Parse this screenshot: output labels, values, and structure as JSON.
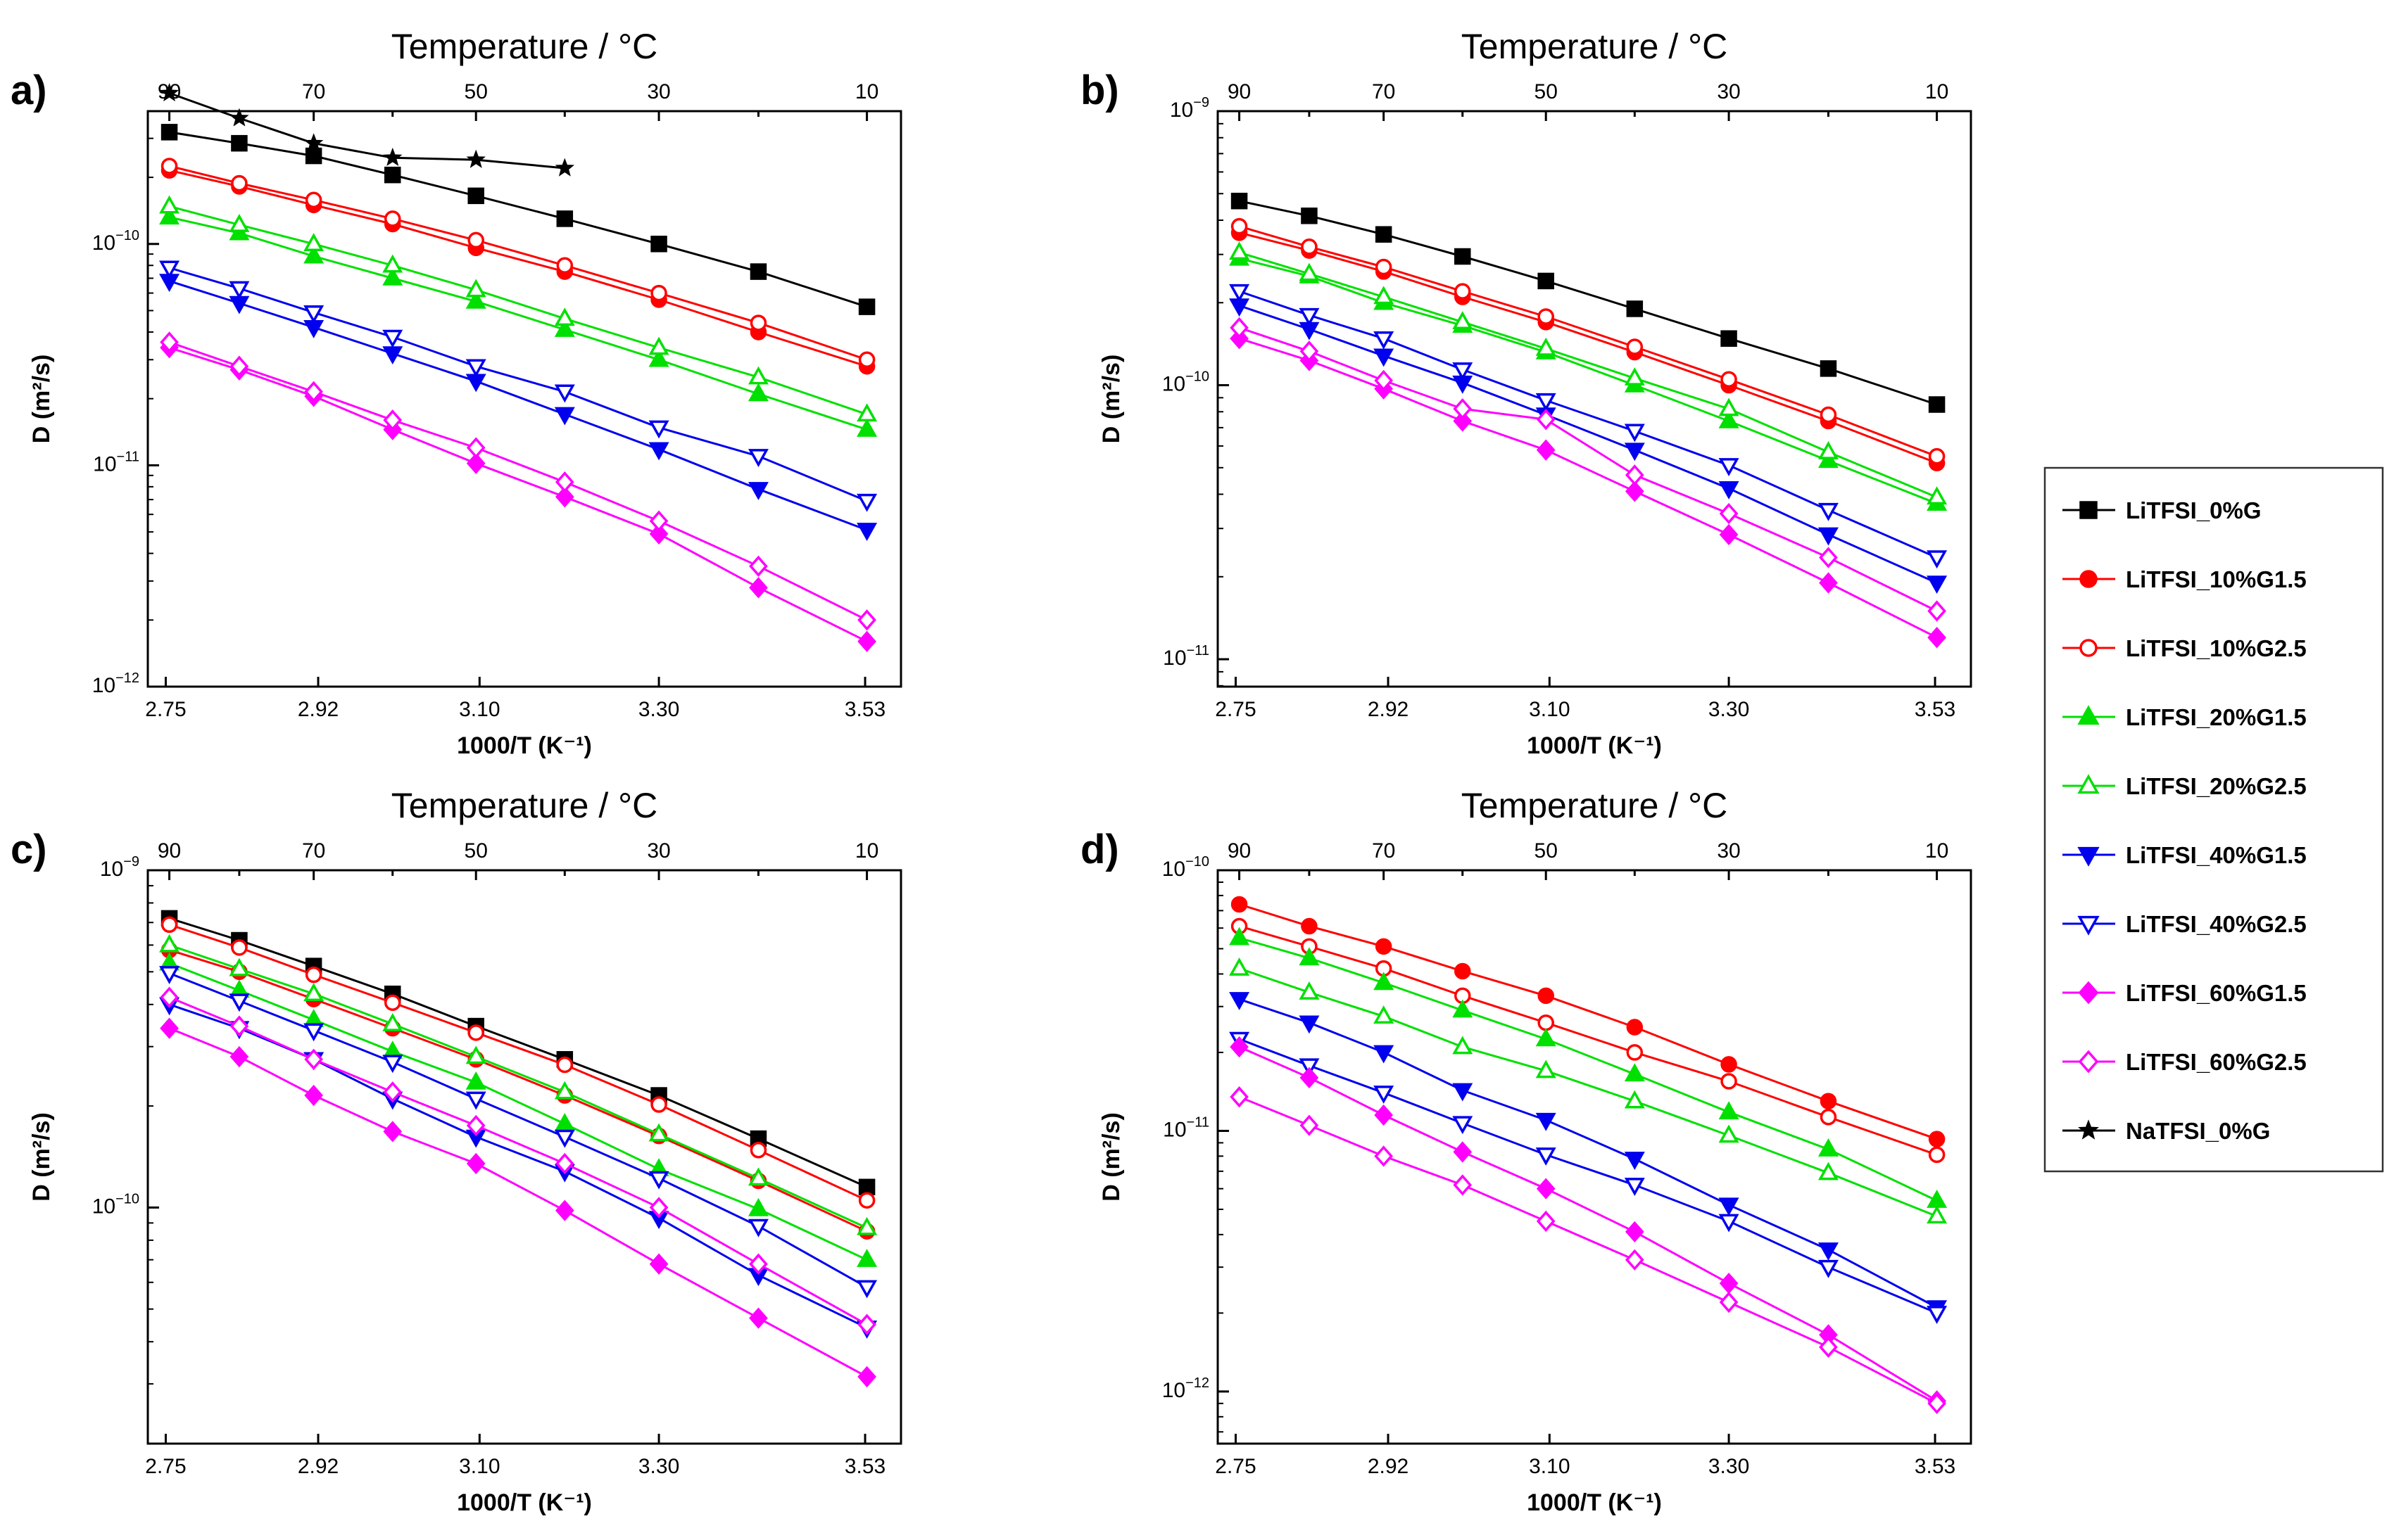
{
  "figure": {
    "legend_entries": [
      {
        "name": "LiTFSI_0%G",
        "color": "#000000",
        "marker": "square",
        "filled": true
      },
      {
        "name": "LiTFSI_10%G1.5",
        "color": "#ff0000",
        "marker": "circle",
        "filled": true
      },
      {
        "name": "LiTFSI_10%G2.5",
        "color": "#ff0000",
        "marker": "circle",
        "filled": false
      },
      {
        "name": "LiTFSI_20%G1.5",
        "color": "#00e000",
        "marker": "triangle-up",
        "filled": true
      },
      {
        "name": "LiTFSI_20%G2.5",
        "color": "#00e000",
        "marker": "triangle-up",
        "filled": false
      },
      {
        "name": "LiTFSI_40%G1.5",
        "color": "#0000ee",
        "marker": "triangle-down",
        "filled": true
      },
      {
        "name": "LiTFSI_40%G2.5",
        "color": "#0000ee",
        "marker": "triangle-down",
        "filled": false
      },
      {
        "name": "LiTFSI_60%G1.5",
        "color": "#ff00ff",
        "marker": "diamond",
        "filled": true
      },
      {
        "name": "LiTFSI_60%G2.5",
        "color": "#ff00ff",
        "marker": "diamond",
        "filled": false
      },
      {
        "name": "NaTFSI_0%G",
        "color": "#000000",
        "marker": "star",
        "filled": true
      }
    ]
  },
  "chart_data": [
    {
      "type": "line",
      "panel_label": "a)",
      "title": "Temperature / °C",
      "xlabel": "1000/T (K⁻¹)",
      "ylabel": "D (m²/s)",
      "yscale": "log",
      "xlim": [
        2.73,
        3.57
      ],
      "ylim_exp": [
        -12,
        -9.4
      ],
      "xticks": [
        2.75,
        2.92,
        3.1,
        3.3,
        3.53
      ],
      "xtick_labels": [
        "2.75",
        "2.92",
        "3.10",
        "3.30",
        "3.53"
      ],
      "yticks_exp": [
        -12,
        -11,
        -10
      ],
      "top_ticks_x": [
        2.754,
        2.832,
        2.915,
        3.003,
        3.096,
        3.195,
        3.3,
        3.411,
        3.532
      ],
      "top_tick_labels": [
        "90",
        "",
        "70",
        "",
        "50",
        "",
        "30",
        "",
        "10"
      ],
      "x": [
        2.754,
        2.832,
        2.915,
        3.003,
        3.096,
        3.195,
        3.3,
        3.411,
        3.532
      ],
      "series": [
        {
          "name": "LiTFSI_0%G",
          "values": [
            3.2e-10,
            2.85e-10,
            2.5e-10,
            2.05e-10,
            1.65e-10,
            1.3e-10,
            1e-10,
            7.5e-11,
            5.2e-11
          ]
        },
        {
          "name": "LiTFSI_10%G1.5",
          "values": [
            2.15e-10,
            1.82e-10,
            1.5e-10,
            1.23e-10,
            9.6e-11,
            7.5e-11,
            5.6e-11,
            4e-11,
            2.8e-11
          ]
        },
        {
          "name": "LiTFSI_10%G2.5",
          "values": [
            2.25e-10,
            1.88e-10,
            1.58e-10,
            1.3e-10,
            1.04e-10,
            8e-11,
            6e-11,
            4.4e-11,
            3e-11
          ]
        },
        {
          "name": "LiTFSI_20%G1.5",
          "values": [
            1.32e-10,
            1.12e-10,
            8.8e-11,
            7e-11,
            5.5e-11,
            4.1e-11,
            3e-11,
            2.1e-11,
            1.45e-11
          ]
        },
        {
          "name": "LiTFSI_20%G2.5",
          "values": [
            1.48e-10,
            1.22e-10,
            1e-10,
            8e-11,
            6.2e-11,
            4.6e-11,
            3.4e-11,
            2.5e-11,
            1.7e-11
          ]
        },
        {
          "name": "LiTFSI_40%G1.5",
          "values": [
            6.8e-11,
            5.4e-11,
            4.2e-11,
            3.2e-11,
            2.4e-11,
            1.7e-11,
            1.18e-11,
            7.8e-12,
            5.1e-12
          ]
        },
        {
          "name": "LiTFSI_40%G2.5",
          "values": [
            7.8e-11,
            6.3e-11,
            4.9e-11,
            3.8e-11,
            2.8e-11,
            2.15e-11,
            1.48e-11,
            1.1e-11,
            6.9e-12
          ]
        },
        {
          "name": "LiTFSI_60%G1.5",
          "values": [
            3.4e-11,
            2.7e-11,
            2.05e-11,
            1.45e-11,
            1.02e-11,
            7.2e-12,
            4.9e-12,
            2.8e-12,
            1.6e-12
          ]
        },
        {
          "name": "LiTFSI_60%G2.5",
          "values": [
            3.6e-11,
            2.8e-11,
            2.15e-11,
            1.6e-11,
            1.2e-11,
            8.4e-12,
            5.6e-12,
            3.5e-12,
            2e-12
          ]
        },
        {
          "name": "NaTFSI_0%G",
          "x": [
            2.754,
            2.832,
            2.915,
            3.003,
            3.096,
            3.195
          ],
          "values": [
            4.8e-10,
            3.7e-10,
            2.85e-10,
            2.45e-10,
            2.4e-10,
            2.2e-10
          ]
        }
      ]
    },
    {
      "type": "line",
      "panel_label": "b)",
      "title": "Temperature / °C",
      "xlabel": "1000/T (K⁻¹)",
      "ylabel": "D (m²/s)",
      "yscale": "log",
      "xlim": [
        2.73,
        3.57
      ],
      "ylim_exp": [
        -11.1,
        -9
      ],
      "xticks": [
        2.75,
        2.92,
        3.1,
        3.3,
        3.53
      ],
      "xtick_labels": [
        "2.75",
        "2.92",
        "3.10",
        "3.30",
        "3.53"
      ],
      "yticks_exp": [
        -11,
        -10,
        -9
      ],
      "top_ticks_x": [
        2.754,
        2.832,
        2.915,
        3.003,
        3.096,
        3.195,
        3.3,
        3.411,
        3.532
      ],
      "top_tick_labels": [
        "90",
        "",
        "70",
        "",
        "50",
        "",
        "30",
        "",
        "10"
      ],
      "x": [
        2.754,
        2.832,
        2.915,
        3.003,
        3.096,
        3.195,
        3.3,
        3.411,
        3.532
      ],
      "series": [
        {
          "name": "LiTFSI_0%G",
          "values": [
            4.7e-10,
            4.15e-10,
            3.55e-10,
            2.95e-10,
            2.4e-10,
            1.9e-10,
            1.48e-10,
            1.15e-10,
            8.5e-11
          ]
        },
        {
          "name": "LiTFSI_10%G1.5",
          "values": [
            3.6e-10,
            3.1e-10,
            2.6e-10,
            2.1e-10,
            1.7e-10,
            1.32e-10,
            1e-10,
            7.4e-11,
            5.2e-11
          ]
        },
        {
          "name": "LiTFSI_10%G2.5",
          "values": [
            3.8e-10,
            3.2e-10,
            2.7e-10,
            2.2e-10,
            1.78e-10,
            1.38e-10,
            1.05e-10,
            7.8e-11,
            5.5e-11
          ]
        },
        {
          "name": "LiTFSI_20%G1.5",
          "values": [
            2.9e-10,
            2.5e-10,
            2e-10,
            1.65e-10,
            1.32e-10,
            1e-10,
            7.4e-11,
            5.3e-11,
            3.7e-11
          ]
        },
        {
          "name": "LiTFSI_20%G2.5",
          "values": [
            3.05e-10,
            2.55e-10,
            2.1e-10,
            1.7e-10,
            1.36e-10,
            1.06e-10,
            8.2e-11,
            5.7e-11,
            3.9e-11
          ]
        },
        {
          "name": "LiTFSI_40%G1.5",
          "values": [
            1.95e-10,
            1.6e-10,
            1.28e-10,
            1.02e-10,
            7.8e-11,
            5.8e-11,
            4.2e-11,
            2.85e-11,
            1.9e-11
          ]
        },
        {
          "name": "LiTFSI_40%G2.5",
          "values": [
            2.2e-10,
            1.8e-10,
            1.48e-10,
            1.14e-10,
            8.8e-11,
            6.8e-11,
            5.1e-11,
            3.5e-11,
            2.35e-11
          ]
        },
        {
          "name": "LiTFSI_60%G1.5",
          "values": [
            1.48e-10,
            1.23e-10,
            9.7e-11,
            7.4e-11,
            5.8e-11,
            4.1e-11,
            2.85e-11,
            1.9e-11,
            1.2e-11
          ]
        },
        {
          "name": "LiTFSI_60%G2.5",
          "values": [
            1.62e-10,
            1.33e-10,
            1.04e-10,
            8.2e-11,
            7.5e-11,
            4.7e-11,
            3.4e-11,
            2.35e-11,
            1.5e-11
          ]
        }
      ]
    },
    {
      "type": "line",
      "panel_label": "c)",
      "title": "Temperature / °C",
      "xlabel": "1000/T (K⁻¹)",
      "ylabel": "D (m²/s)",
      "yscale": "log",
      "xlim": [
        2.73,
        3.57
      ],
      "ylim_exp": [
        -10.7,
        -9
      ],
      "xticks": [
        2.75,
        2.92,
        3.1,
        3.3,
        3.53
      ],
      "xtick_labels": [
        "2.75",
        "2.92",
        "3.10",
        "3.30",
        "3.53"
      ],
      "yticks_exp": [
        -10,
        -9
      ],
      "top_ticks_x": [
        2.754,
        2.832,
        2.915,
        3.003,
        3.096,
        3.195,
        3.3,
        3.411,
        3.532
      ],
      "top_tick_labels": [
        "90",
        "",
        "70",
        "",
        "50",
        "",
        "30",
        "",
        "10"
      ],
      "x": [
        2.754,
        2.832,
        2.915,
        3.003,
        3.096,
        3.195,
        3.3,
        3.411,
        3.532
      ],
      "series": [
        {
          "name": "LiTFSI_0%G",
          "values": [
            7.2e-10,
            6.2e-10,
            5.2e-10,
            4.3e-10,
            3.45e-10,
            2.75e-10,
            2.15e-10,
            1.6e-10,
            1.15e-10
          ]
        },
        {
          "name": "LiTFSI_10%G1.5",
          "values": [
            5.8e-10,
            5e-10,
            4.15e-10,
            3.4e-10,
            2.75e-10,
            2.15e-10,
            1.63e-10,
            1.2e-10,
            8.5e-11
          ]
        },
        {
          "name": "LiTFSI_10%G2.5",
          "values": [
            6.9e-10,
            5.9e-10,
            4.9e-10,
            4.05e-10,
            3.3e-10,
            2.65e-10,
            2.02e-10,
            1.48e-10,
            1.05e-10
          ]
        },
        {
          "name": "LiTFSI_20%G1.5",
          "values": [
            5.3e-10,
            4.4e-10,
            3.6e-10,
            2.9e-10,
            2.35e-10,
            1.77e-10,
            1.3e-10,
            9.9e-11,
            7e-11
          ]
        },
        {
          "name": "LiTFSI_20%G2.5",
          "values": [
            6e-10,
            5.1e-10,
            4.3e-10,
            3.5e-10,
            2.8e-10,
            2.2e-10,
            1.65e-10,
            1.22e-10,
            8.7e-11
          ]
        },
        {
          "name": "LiTFSI_40%G1.5",
          "values": [
            4e-10,
            3.4e-10,
            2.75e-10,
            2.1e-10,
            1.62e-10,
            1.28e-10,
            9.3e-11,
            6.3e-11,
            4.4e-11
          ]
        },
        {
          "name": "LiTFSI_40%G2.5",
          "values": [
            4.95e-10,
            4.1e-10,
            3.35e-10,
            2.7e-10,
            2.1e-10,
            1.62e-10,
            1.22e-10,
            8.8e-11,
            5.8e-11
          ]
        },
        {
          "name": "LiTFSI_60%G1.5",
          "values": [
            3.4e-10,
            2.8e-10,
            2.15e-10,
            1.68e-10,
            1.35e-10,
            9.8e-11,
            6.8e-11,
            4.7e-11,
            3.15e-11
          ]
        },
        {
          "name": "LiTFSI_60%G2.5",
          "values": [
            4.2e-10,
            3.45e-10,
            2.75e-10,
            2.2e-10,
            1.75e-10,
            1.35e-10,
            1e-10,
            6.8e-11,
            4.5e-11
          ]
        }
      ]
    },
    {
      "type": "line",
      "panel_label": "d)",
      "title": "Temperature / °C",
      "xlabel": "1000/T (K⁻¹)",
      "ylabel": "D (m²/s)",
      "yscale": "log",
      "xlim": [
        2.73,
        3.57
      ],
      "ylim_exp": [
        -12.2,
        -10
      ],
      "xticks": [
        2.75,
        2.92,
        3.1,
        3.3,
        3.53
      ],
      "xtick_labels": [
        "2.75",
        "2.92",
        "3.10",
        "3.30",
        "3.53"
      ],
      "yticks_exp": [
        -12,
        -11,
        -10
      ],
      "top_ticks_x": [
        2.754,
        2.832,
        2.915,
        3.003,
        3.096,
        3.195,
        3.3,
        3.411,
        3.532
      ],
      "top_tick_labels": [
        "90",
        "",
        "70",
        "",
        "50",
        "",
        "30",
        "",
        "10"
      ],
      "x": [
        2.754,
        2.832,
        2.915,
        3.003,
        3.096,
        3.195,
        3.3,
        3.411,
        3.532
      ],
      "series": [
        {
          "name": "LiTFSI_10%G1.5",
          "values": [
            7.4e-11,
            6.1e-11,
            5.1e-11,
            4.1e-11,
            3.3e-11,
            2.5e-11,
            1.8e-11,
            1.3e-11,
            9.3e-12
          ]
        },
        {
          "name": "LiTFSI_10%G2.5",
          "values": [
            6.1e-11,
            5.1e-11,
            4.2e-11,
            3.3e-11,
            2.6e-11,
            2e-11,
            1.55e-11,
            1.13e-11,
            8.1e-12
          ]
        },
        {
          "name": "LiTFSI_20%G1.5",
          "values": [
            5.5e-11,
            4.6e-11,
            3.7e-11,
            2.9e-11,
            2.25e-11,
            1.65e-11,
            1.18e-11,
            8.5e-12,
            5.4e-12
          ]
        },
        {
          "name": "LiTFSI_20%G2.5",
          "values": [
            4.2e-11,
            3.4e-11,
            2.75e-11,
            2.1e-11,
            1.7e-11,
            1.3e-11,
            9.6e-12,
            6.9e-12,
            4.7e-12
          ]
        },
        {
          "name": "LiTFSI_40%G1.5",
          "values": [
            3.2e-11,
            2.6e-11,
            2e-11,
            1.43e-11,
            1.1e-11,
            7.8e-12,
            5.2e-12,
            3.5e-12,
            2.1e-12
          ]
        },
        {
          "name": "LiTFSI_40%G2.5",
          "values": [
            2.25e-11,
            1.78e-11,
            1.4e-11,
            1.07e-11,
            8.1e-12,
            6.2e-12,
            4.5e-12,
            3e-12,
            2e-12
          ]
        },
        {
          "name": "LiTFSI_60%G1.5",
          "values": [
            2.1e-11,
            1.6e-11,
            1.15e-11,
            8.3e-12,
            6e-12,
            4.1e-12,
            2.6e-12,
            1.65e-12,
            9.2e-13
          ]
        },
        {
          "name": "LiTFSI_60%G2.5",
          "values": [
            1.35e-11,
            1.05e-11,
            8e-12,
            6.2e-12,
            4.5e-12,
            3.2e-12,
            2.2e-12,
            1.48e-12,
            9e-13
          ]
        }
      ]
    }
  ]
}
